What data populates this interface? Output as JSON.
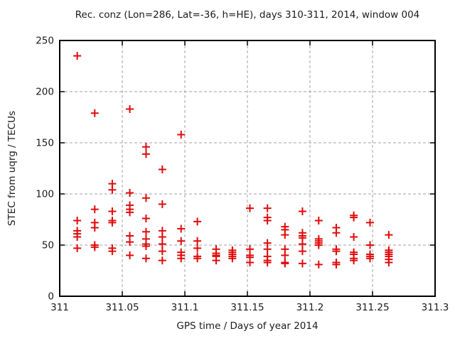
{
  "chart_data": {
    "type": "scatter",
    "title": "Rec. conz (Lon=286, Lat=-36, h=HE), days 310-311, 2014, window 004",
    "xlabel": "GPS time / Days of year 2014",
    "ylabel": "STEC from uqrg / TECUs",
    "xlim": [
      311,
      311.3
    ],
    "ylim": [
      0,
      250
    ],
    "x_ticks": [
      311,
      311.05,
      311.1,
      311.15,
      311.2,
      311.25,
      311.3
    ],
    "x_tick_labels": [
      "311",
      "311.05",
      "311.1",
      "311.15",
      "311.2",
      "311.25",
      "311.3"
    ],
    "y_ticks": [
      0,
      50,
      100,
      150,
      200,
      250
    ],
    "y_tick_labels": [
      "0",
      "50",
      "100",
      "150",
      "200",
      "250"
    ],
    "grid": true,
    "legend": "none",
    "marker": {
      "shape": "plus",
      "color": "#e00b0b",
      "size": 11
    },
    "grid_color": "#a0a0a0",
    "border_color": "#000000",
    "series": [
      {
        "name": "STEC",
        "points": [
          [
            311.014,
            235
          ],
          [
            311.014,
            74
          ],
          [
            311.014,
            64
          ],
          [
            311.014,
            61
          ],
          [
            311.014,
            58
          ],
          [
            311.014,
            47
          ],
          [
            311.028,
            179
          ],
          [
            311.028,
            85
          ],
          [
            311.028,
            72
          ],
          [
            311.028,
            67
          ],
          [
            311.028,
            50
          ],
          [
            311.028,
            48
          ],
          [
            311.042,
            110
          ],
          [
            311.042,
            104
          ],
          [
            311.042,
            83
          ],
          [
            311.042,
            74
          ],
          [
            311.042,
            72
          ],
          [
            311.042,
            47
          ],
          [
            311.042,
            44
          ],
          [
            311.056,
            183
          ],
          [
            311.056,
            101
          ],
          [
            311.056,
            89
          ],
          [
            311.056,
            85
          ],
          [
            311.056,
            82
          ],
          [
            311.056,
            59
          ],
          [
            311.056,
            53
          ],
          [
            311.056,
            40
          ],
          [
            311.069,
            146
          ],
          [
            311.069,
            139
          ],
          [
            311.069,
            96
          ],
          [
            311.069,
            76
          ],
          [
            311.069,
            63
          ],
          [
            311.069,
            56
          ],
          [
            311.069,
            51
          ],
          [
            311.069,
            49
          ],
          [
            311.069,
            37
          ],
          [
            311.082,
            124
          ],
          [
            311.082,
            90
          ],
          [
            311.082,
            64
          ],
          [
            311.082,
            58
          ],
          [
            311.082,
            51
          ],
          [
            311.082,
            44
          ],
          [
            311.082,
            35
          ],
          [
            311.097,
            158
          ],
          [
            311.097,
            66
          ],
          [
            311.097,
            54
          ],
          [
            311.097,
            43
          ],
          [
            311.097,
            40
          ],
          [
            311.097,
            37
          ],
          [
            311.11,
            73
          ],
          [
            311.11,
            54
          ],
          [
            311.11,
            47
          ],
          [
            311.11,
            39
          ],
          [
            311.11,
            37
          ],
          [
            311.125,
            46
          ],
          [
            311.125,
            42
          ],
          [
            311.125,
            40
          ],
          [
            311.125,
            39
          ],
          [
            311.125,
            35
          ],
          [
            311.138,
            45
          ],
          [
            311.138,
            43
          ],
          [
            311.138,
            41
          ],
          [
            311.138,
            39
          ],
          [
            311.138,
            37
          ],
          [
            311.152,
            86
          ],
          [
            311.152,
            46
          ],
          [
            311.152,
            40
          ],
          [
            311.152,
            38
          ],
          [
            311.152,
            33
          ],
          [
            311.166,
            86
          ],
          [
            311.166,
            77
          ],
          [
            311.166,
            74
          ],
          [
            311.166,
            52
          ],
          [
            311.166,
            46
          ],
          [
            311.166,
            39
          ],
          [
            311.166,
            35
          ],
          [
            311.166,
            33
          ],
          [
            311.18,
            68
          ],
          [
            311.18,
            65
          ],
          [
            311.18,
            60
          ],
          [
            311.18,
            46
          ],
          [
            311.18,
            40
          ],
          [
            311.18,
            33
          ],
          [
            311.18,
            32
          ],
          [
            311.194,
            83
          ],
          [
            311.194,
            62
          ],
          [
            311.194,
            59
          ],
          [
            311.194,
            57
          ],
          [
            311.194,
            51
          ],
          [
            311.194,
            44
          ],
          [
            311.194,
            32
          ],
          [
            311.207,
            74
          ],
          [
            311.207,
            56
          ],
          [
            311.207,
            54
          ],
          [
            311.207,
            52
          ],
          [
            311.207,
            50
          ],
          [
            311.207,
            31
          ],
          [
            311.221,
            67
          ],
          [
            311.221,
            62
          ],
          [
            311.221,
            46
          ],
          [
            311.221,
            44
          ],
          [
            311.221,
            33
          ],
          [
            311.221,
            31
          ],
          [
            311.235,
            79
          ],
          [
            311.235,
            77
          ],
          [
            311.235,
            58
          ],
          [
            311.235,
            43
          ],
          [
            311.235,
            41
          ],
          [
            311.235,
            37
          ],
          [
            311.235,
            35
          ],
          [
            311.248,
            72
          ],
          [
            311.248,
            50
          ],
          [
            311.248,
            41
          ],
          [
            311.248,
            39
          ],
          [
            311.248,
            37
          ],
          [
            311.263,
            60
          ],
          [
            311.263,
            45
          ],
          [
            311.263,
            43
          ],
          [
            311.263,
            41
          ],
          [
            311.263,
            39
          ],
          [
            311.263,
            36
          ],
          [
            311.263,
            33
          ]
        ]
      }
    ]
  }
}
